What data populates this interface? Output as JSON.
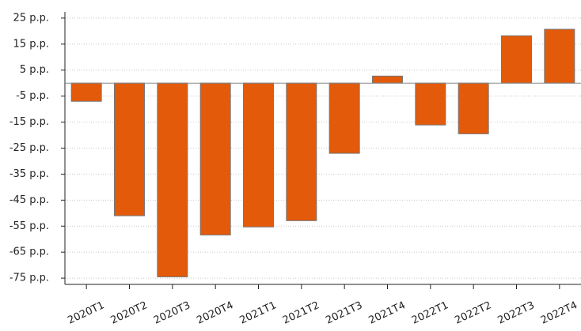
{
  "chart_data": {
    "type": "bar",
    "categories": [
      "2020T1",
      "2020T2",
      "2020T3",
      "2020T4",
      "2021T1",
      "2021T2",
      "2021T3",
      "2021T4",
      "2022T1",
      "2022T2",
      "2022T3",
      "2022T4"
    ],
    "values": [
      -7,
      -51,
      -74.5,
      -58.4,
      -55.3,
      -52.9,
      -27,
      2.7,
      -16.1,
      -19.5,
      18.2,
      20.7
    ],
    "color": "#e35a0a",
    "ylim": [
      -77.4,
      27.4
    ],
    "yticks": [
      {
        "value": 25,
        "label": "25 p.p."
      },
      {
        "value": 15,
        "label": "15 p.p."
      },
      {
        "value": 5,
        "label": "5 p.p."
      },
      {
        "value": -5,
        "label": "-5 p.p."
      },
      {
        "value": -15,
        "label": "-15 p.p."
      },
      {
        "value": -25,
        "label": "-25 p.p."
      },
      {
        "value": -35,
        "label": "-35 p.p."
      },
      {
        "value": -45,
        "label": "-45 p.p."
      },
      {
        "value": -55,
        "label": "-55 p.p."
      },
      {
        "value": -65,
        "label": "-65 p.p."
      },
      {
        "value": -75,
        "label": "-75 p.p."
      }
    ],
    "grid": true
  }
}
